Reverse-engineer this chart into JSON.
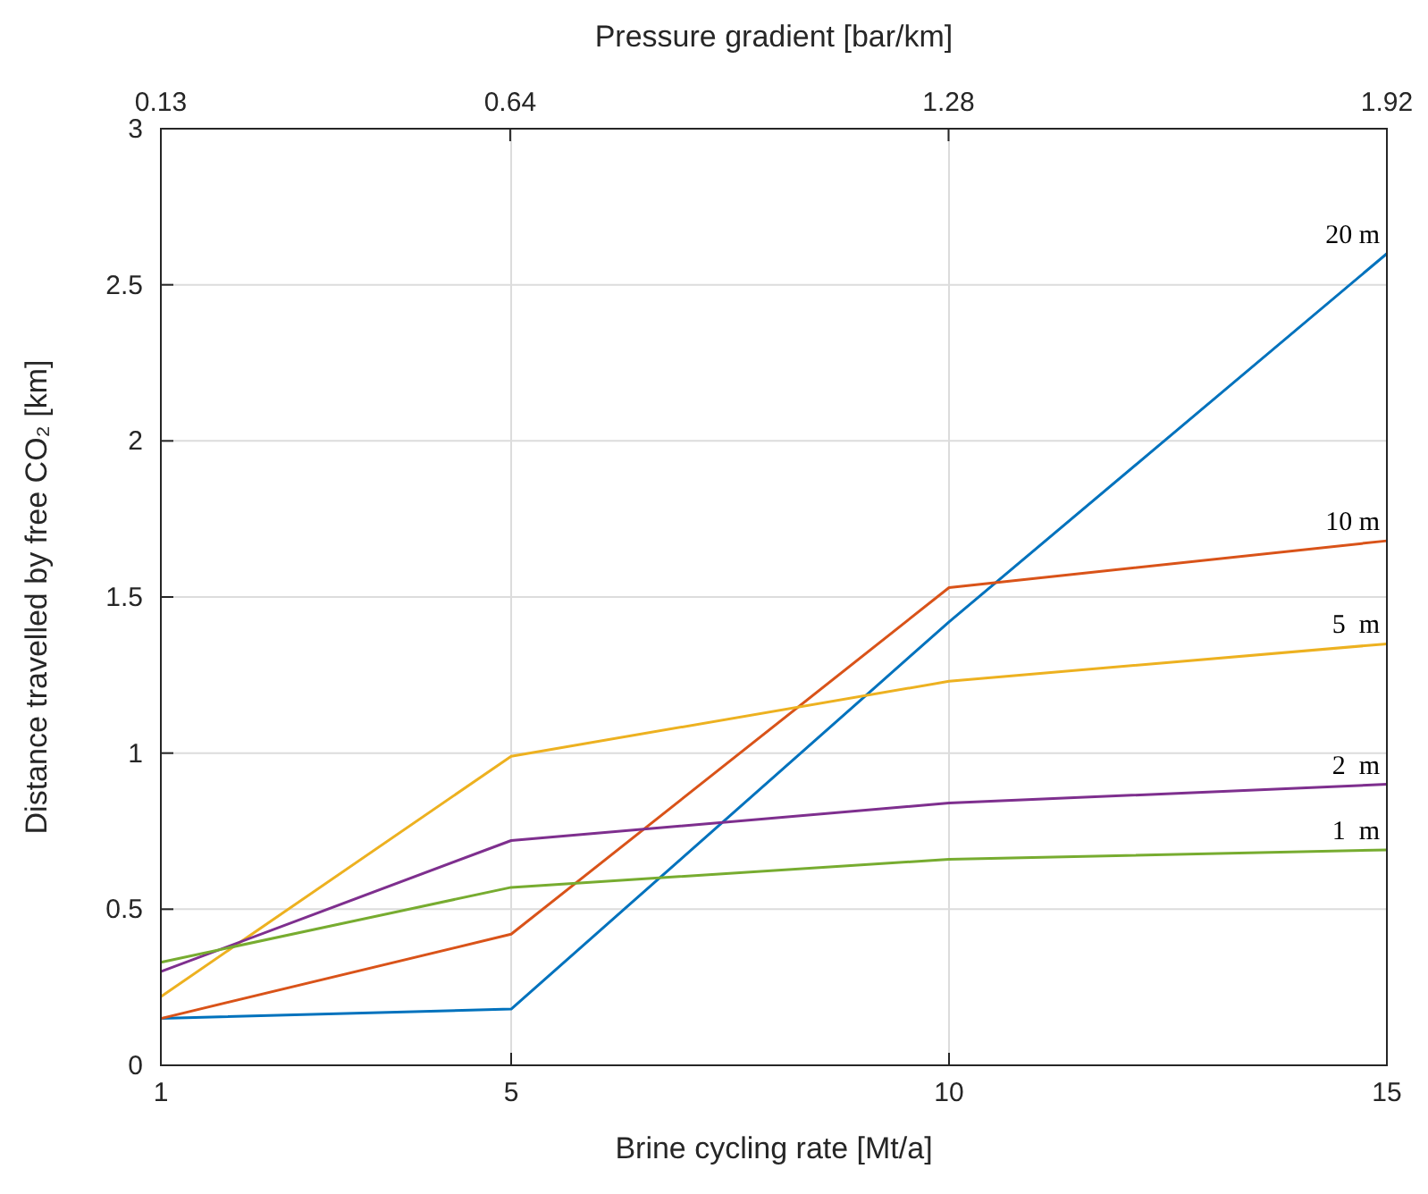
{
  "chart_data": {
    "type": "line",
    "xlabel": "Brine cycling rate [Mt/a]",
    "ylabel": "Distance travelled by free CO₂ [km]",
    "x2label": "Pressure gradient [bar/km]",
    "x": [
      1,
      5,
      10,
      15
    ],
    "xlim": [
      1,
      15
    ],
    "xticks": [
      1,
      5,
      10,
      15
    ],
    "x2lim": [
      0.13,
      1.92
    ],
    "x2ticks": [
      0.13,
      0.64,
      1.28,
      1.92
    ],
    "ylim": [
      0,
      3
    ],
    "yticks": [
      0,
      0.5,
      1,
      1.5,
      2,
      2.5,
      3
    ],
    "grid": true,
    "marker": "none",
    "line_style": "solid",
    "series": [
      {
        "name": "20 m",
        "color": "#0072bd",
        "values": [
          0.15,
          0.18,
          1.42,
          2.6
        ]
      },
      {
        "name": "10 m",
        "color": "#d95319",
        "values": [
          0.15,
          0.42,
          1.53,
          1.68
        ]
      },
      {
        "name": "5  m",
        "color": "#edb120",
        "values": [
          0.22,
          0.99,
          1.23,
          1.35
        ]
      },
      {
        "name": "2  m",
        "color": "#7e2f8e",
        "values": [
          0.3,
          0.72,
          0.84,
          0.9
        ]
      },
      {
        "name": "1  m",
        "color": "#77ac30",
        "values": [
          0.33,
          0.57,
          0.66,
          0.69
        ]
      }
    ]
  }
}
